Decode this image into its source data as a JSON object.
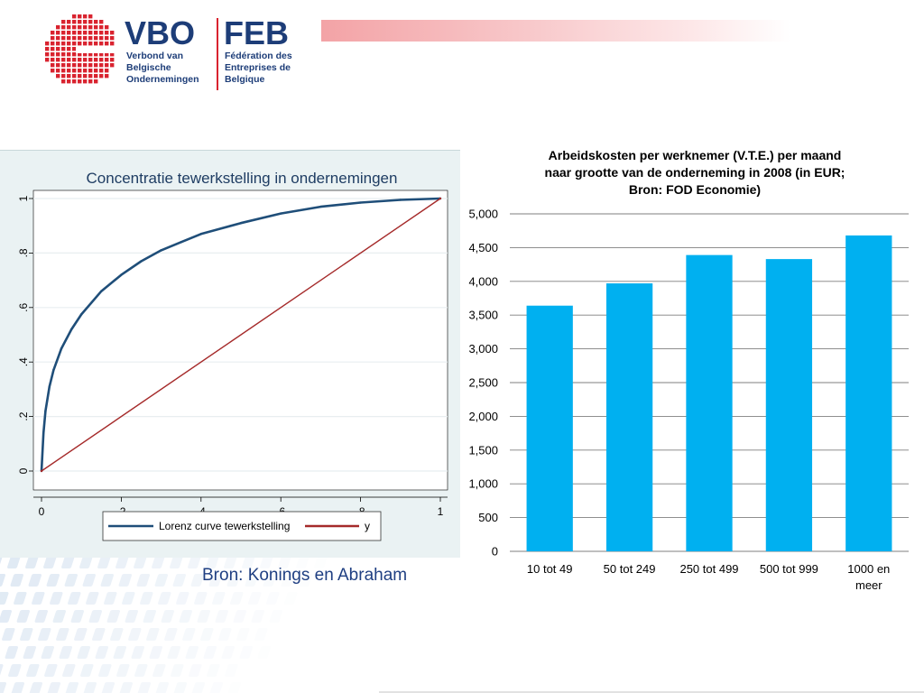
{
  "logo": {
    "brand_nl": "VBO",
    "brand_fr": "FEB",
    "name_nl": "Verbond van\nBelgische\nOndernemingen",
    "name_fr": "Fédération des\nEntreprises de\nBelgique"
  },
  "colors": {
    "brand_blue": "#1d3d78",
    "brand_red": "#d9232f",
    "bar": "#00b0f0",
    "lorenz": "#1f4e79",
    "diagonal": "#a52a2a"
  },
  "left_source": "Bron: Konings en Abraham",
  "chart_data": [
    {
      "type": "line",
      "title": "Concentratie tewerkstelling in ondernemingen",
      "xlabel": "",
      "ylabel": "",
      "x_ticks": [
        "0",
        ".2",
        ".4",
        ".6",
        ".8",
        "1"
      ],
      "y_ticks": [
        "0",
        ".2",
        ".4",
        ".6",
        ".8",
        "1"
      ],
      "xlim": [
        0,
        1
      ],
      "ylim": [
        0,
        1
      ],
      "grid": true,
      "legend_position": "bottom",
      "series": [
        {
          "name": "Lorenz curve tewerkstelling",
          "x": [
            0,
            0.005,
            0.01,
            0.02,
            0.03,
            0.05,
            0.075,
            0.1,
            0.15,
            0.2,
            0.25,
            0.3,
            0.35,
            0.4,
            0.5,
            0.6,
            0.7,
            0.8,
            0.9,
            1.0
          ],
          "y": [
            0,
            0.14,
            0.22,
            0.31,
            0.37,
            0.45,
            0.52,
            0.575,
            0.66,
            0.72,
            0.77,
            0.81,
            0.84,
            0.87,
            0.91,
            0.945,
            0.97,
            0.985,
            0.995,
            1.0
          ]
        },
        {
          "name": "y",
          "x": [
            0,
            1
          ],
          "y": [
            0,
            1
          ]
        }
      ]
    },
    {
      "type": "bar",
      "title": "Arbeidskosten per werknemer (V.T.E.) per maand naar grootte van de onderneming in 2008 (in EUR; Bron: FOD Economie)",
      "title_lines": [
        "Arbeidskosten per werknemer (V.T.E.) per maand",
        "naar grootte van de onderneming in 2008 (in EUR;",
        "Bron: FOD Economie)"
      ],
      "categories": [
        "10 tot 49",
        "50 tot 249",
        "250 tot 499",
        "500 tot 999",
        "1000 en meer"
      ],
      "category_lines": [
        [
          "10 tot 49"
        ],
        [
          "50 tot 249"
        ],
        [
          "250 tot 499"
        ],
        [
          "500 tot 999"
        ],
        [
          "1000 en",
          "meer"
        ]
      ],
      "values": [
        3640,
        3970,
        4390,
        4330,
        4680
      ],
      "y_ticks": [
        "0",
        "500",
        "1,000",
        "1,500",
        "2,000",
        "2,500",
        "3,000",
        "3,500",
        "4,000",
        "4,500",
        "5,000"
      ],
      "ylim": [
        0,
        5000
      ],
      "xlabel": "",
      "ylabel": "",
      "grid": true
    }
  ]
}
